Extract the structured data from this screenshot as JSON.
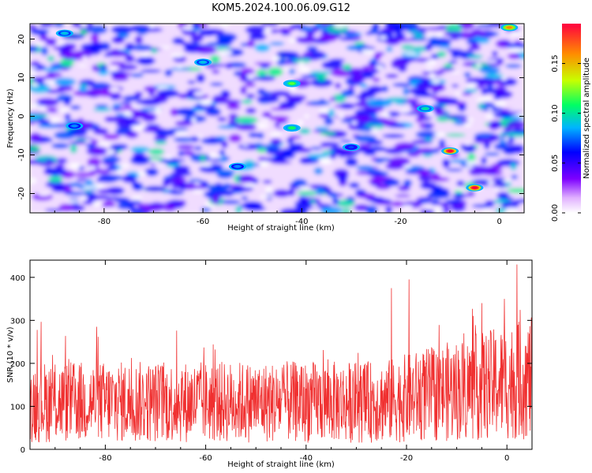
{
  "title": "KOM5.2024.100.06.09.G12",
  "chart_data": [
    {
      "type": "heatmap",
      "xlabel": "Height of straight line (km)",
      "ylabel": "Frequency (Hz)",
      "xlim": [
        -95,
        5
      ],
      "ylim": [
        -25,
        24
      ],
      "xticks": [
        -80,
        -60,
        -40,
        -20,
        0
      ],
      "yticks": [
        -20,
        -10,
        0,
        10,
        20
      ],
      "colorbar": {
        "label": "Normalized spectral amplitude",
        "range": [
          0,
          0.19
        ],
        "ticks": [
          "0.00",
          "0.05",
          "0.10",
          "0.15"
        ],
        "colormap": [
          "#ffffff",
          "#7d00ff",
          "#0000ff",
          "#00b4ff",
          "#00ff64",
          "#c8ff00",
          "#ff8c00",
          "#ff0040"
        ]
      },
      "hotspots": [
        {
          "x": -10,
          "y": -9,
          "value": 0.19
        },
        {
          "x": -5,
          "y": -18.5,
          "value": 0.19
        },
        {
          "x": -42,
          "y": 8.5,
          "value": 0.12
        },
        {
          "x": -42,
          "y": -3,
          "value": 0.11
        },
        {
          "x": -15,
          "y": 2,
          "value": 0.1
        },
        {
          "x": -60,
          "y": 14,
          "value": 0.09
        },
        {
          "x": -88,
          "y": 21.5,
          "value": 0.09
        },
        {
          "x": 2,
          "y": 23,
          "value": 0.16
        },
        {
          "x": -53,
          "y": -13,
          "value": 0.08
        },
        {
          "x": -86,
          "y": -2.5,
          "value": 0.08
        },
        {
          "x": -30,
          "y": -8,
          "value": 0.07
        }
      ]
    },
    {
      "type": "line",
      "xlabel": "Height of straight line (km)",
      "ylabel": "SNR (10 * v/v)",
      "xlim": [
        -95,
        5
      ],
      "ylim": [
        0,
        440
      ],
      "xticks": [
        -80,
        -60,
        -40,
        -20,
        0
      ],
      "yticks": [
        0,
        100,
        200,
        300,
        400
      ],
      "series_color": "#f03030",
      "summary": {
        "x_range": [
          -95,
          5
        ],
        "typical_level": 110,
        "peaks": [
          {
            "x": 2,
            "y": 430
          },
          {
            "x": -19.5,
            "y": 395
          },
          {
            "x": -23,
            "y": 375
          },
          {
            "x": -0.5,
            "y": 350
          },
          {
            "x": -5,
            "y": 340
          }
        ]
      }
    }
  ]
}
